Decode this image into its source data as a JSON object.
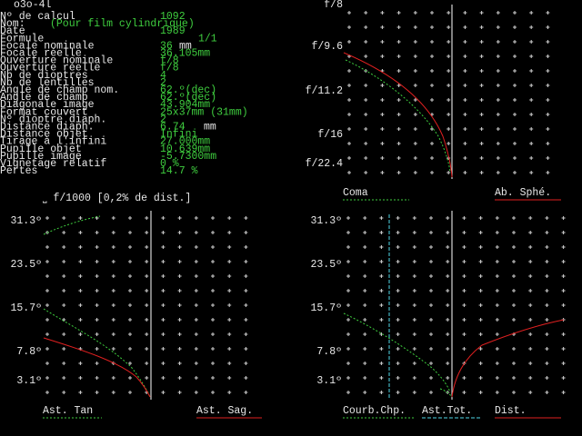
{
  "title": "o3o-4l",
  "params": [
    {
      "label": "Nº de calcul",
      "value": "1092"
    },
    {
      "label": "Nom:",
      "value": "(Pour film cylindrique)"
    },
    {
      "label": "Date",
      "value": "1989"
    },
    {
      "label": "Formule",
      "value": "1/1"
    },
    {
      "label": "Focale nominale",
      "value": "36",
      "unit": "mm"
    },
    {
      "label": "Focale réelle",
      "value": "36.105mm"
    },
    {
      "label": "Ouverture nominale",
      "value": "f/8"
    },
    {
      "label": "Ouverture réelle",
      "value": "f/8"
    },
    {
      "label": "Nb de dioptres",
      "value": "4"
    },
    {
      "label": "Nb de lentilles",
      "value": "2"
    },
    {
      "label": "Angle de champ nom.",
      "value": "62.º(dec)"
    },
    {
      "label": "Angle de champ",
      "value": "62.º(dec)"
    },
    {
      "label": "Diagonale image",
      "value": "43.904mm"
    },
    {
      "label": "Format couvert",
      "value": "25x37mm (31mm)"
    },
    {
      "label": "Nº dioptre diaph.",
      "value": "2"
    },
    {
      "label": "Distance diaph.",
      "value": "6.74",
      "unit": "mm"
    },
    {
      "label": "Distance objet",
      "value": "Infini"
    },
    {
      "label": "Tirage à l'infini",
      "value": "27.000mm"
    },
    {
      "label": "Pupille objet",
      "value": "10.639mm"
    },
    {
      "label": "Pupille image",
      "value": "-5.7300mm"
    },
    {
      "label": "Vignetage relatif",
      "value": "0 %"
    },
    {
      "label": "Pertes",
      "value": "14.7 %"
    }
  ],
  "aberration_plot": {
    "ylabels": [
      "f/8",
      "f/9.6",
      "f/11.2",
      "f/16",
      "f/22.4"
    ],
    "legend": [
      "Coma",
      "Ab. Sphé."
    ]
  },
  "astig_plot": {
    "header": "⎵ f/1000 [0,2% de dist.]",
    "ylabels": [
      "31.3º",
      "23.5º",
      "15.7º",
      "7.8º",
      "3.1º"
    ],
    "legend": [
      "Ast. Tan",
      "Ast. Sag."
    ]
  },
  "field_plot": {
    "ylabels": [
      "31.3º",
      "23.5º",
      "15.7º",
      "7.8º",
      "3.1º"
    ],
    "legend": [
      "Courb.Chp.",
      "Ast.Tot.",
      "Dist."
    ]
  }
}
